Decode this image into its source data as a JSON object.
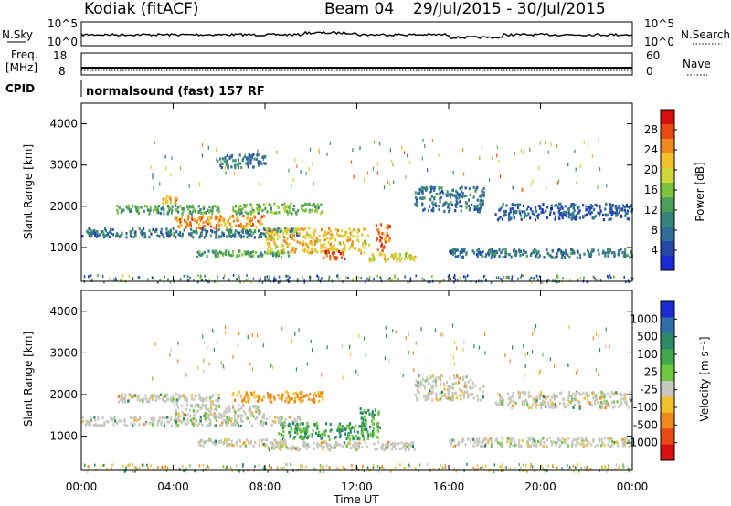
{
  "header": {
    "station": "Kodiak (fitACF)",
    "beam": "Beam 04",
    "dates": "29/Jul/2015 - 30/Jul/2015"
  },
  "noise_panel": {
    "left_label": "N.Sky",
    "right_label": "N.Search",
    "tick_top": "10^5",
    "tick_bottom": "10^0"
  },
  "freq_panel": {
    "left_label_1": "Freq.",
    "left_label_2": "[MHz]",
    "left_tick_top": "18",
    "left_tick_bottom": "8",
    "right_label": "Nave",
    "right_tick_top": "60",
    "right_tick_bottom": "0"
  },
  "cpid": {
    "label": "CPID",
    "value": "normalsound (fast) 157 RF"
  },
  "colors": {
    "power": [
      "#1a2bd6",
      "#2448a8",
      "#2f6e9a",
      "#35857a",
      "#4aa05a",
      "#7cc43c",
      "#cfd83a",
      "#f2c02a",
      "#f08a1e",
      "#ea4a14",
      "#d81010"
    ],
    "velocity": [
      "#1a2bd6",
      "#2f6ea8",
      "#2b8a66",
      "#3ea84a",
      "#6cc83c",
      "#c8c8c0",
      "#f2c02a",
      "#f08a1e",
      "#ea4a14",
      "#d81010"
    ],
    "ground_scatter": "#c8c8c0"
  },
  "chart_data": [
    {
      "type": "heatmap",
      "name": "power",
      "xlabel": "",
      "ylabel": "Slant Range [km]",
      "xlim": [
        "00:00",
        "24:00"
      ],
      "ylim": [
        180,
        4500
      ],
      "yticks": [
        "1000",
        "2000",
        "3000",
        "4000"
      ],
      "colorbar": {
        "label": "Power [dB]",
        "ticks": [
          "28",
          "24",
          "20",
          "16",
          "12",
          "8",
          "4"
        ],
        "range": [
          0,
          30
        ]
      },
      "bands": [
        {
          "t0": 0.0,
          "t1": 9.5,
          "r0": 1280,
          "r1": 1500,
          "val": 8
        },
        {
          "t0": 1.5,
          "t1": 6.0,
          "r0": 1850,
          "r1": 2050,
          "val": 12
        },
        {
          "t0": 3.5,
          "t1": 4.3,
          "r0": 2100,
          "r1": 2280,
          "val": 22
        },
        {
          "t0": 4.0,
          "t1": 8.0,
          "r0": 1500,
          "r1": 1800,
          "val": 22
        },
        {
          "t0": 6.5,
          "t1": 10.5,
          "r0": 1850,
          "r1": 2100,
          "val": 14
        },
        {
          "t0": 5.0,
          "t1": 9.0,
          "r0": 800,
          "r1": 950,
          "val": 12
        },
        {
          "t0": 8.0,
          "t1": 12.5,
          "r0": 900,
          "r1": 1500,
          "val": 20
        },
        {
          "t0": 10.5,
          "t1": 11.5,
          "r0": 750,
          "r1": 950,
          "val": 26
        },
        {
          "t0": 12.5,
          "t1": 14.5,
          "r0": 700,
          "r1": 900,
          "val": 18
        },
        {
          "t0": 12.8,
          "t1": 13.4,
          "r0": 950,
          "r1": 1600,
          "val": 24
        },
        {
          "t0": 14.5,
          "t1": 17.5,
          "r0": 1900,
          "r1": 2500,
          "val": 8
        },
        {
          "t0": 16.0,
          "t1": 24.0,
          "r0": 780,
          "r1": 1000,
          "val": 8
        },
        {
          "t0": 18.0,
          "t1": 24.0,
          "r0": 1700,
          "r1": 2100,
          "val": 6
        },
        {
          "t0": 6.0,
          "t1": 8.0,
          "r0": 2950,
          "r1": 3300,
          "val": 8
        }
      ]
    },
    {
      "type": "heatmap",
      "name": "velocity",
      "xlabel": "Time UT",
      "ylabel": "Slant Range [km]",
      "xlim": [
        "00:00",
        "24:00"
      ],
      "ylim": [
        180,
        4500
      ],
      "xticks": [
        "00:00",
        "04:00",
        "08:00",
        "12:00",
        "16:00",
        "20:00",
        "00:00"
      ],
      "yticks": [
        "1000",
        "2000",
        "3000",
        "4000"
      ],
      "colorbar": {
        "label": "Velocity [m s⁻¹]",
        "ticks": [
          "1000",
          "500",
          "100",
          "25",
          "-25",
          "-100",
          "-500",
          "-1000"
        ]
      },
      "bands": [
        {
          "t0": 0.0,
          "t1": 9.5,
          "r0": 1280,
          "r1": 1500,
          "val": 0
        },
        {
          "t0": 1.5,
          "t1": 6.0,
          "r0": 1850,
          "r1": 2050,
          "val": 0
        },
        {
          "t0": 4.0,
          "t1": 8.0,
          "r0": 1500,
          "r1": 1800,
          "val": 0
        },
        {
          "t0": 6.5,
          "t1": 10.5,
          "r0": 1850,
          "r1": 2100,
          "val": -100
        },
        {
          "t0": 8.5,
          "t1": 12.5,
          "r0": 950,
          "r1": 1350,
          "val": 100
        },
        {
          "t0": 12.0,
          "t1": 13.0,
          "r0": 1000,
          "r1": 1700,
          "val": 100
        },
        {
          "t0": 5.0,
          "t1": 9.0,
          "r0": 800,
          "r1": 950,
          "val": 0
        },
        {
          "t0": 8.0,
          "t1": 14.5,
          "r0": 700,
          "r1": 900,
          "val": 0
        },
        {
          "t0": 14.5,
          "t1": 17.5,
          "r0": 1900,
          "r1": 2500,
          "val": 0
        },
        {
          "t0": 16.0,
          "t1": 24.0,
          "r0": 780,
          "r1": 1000,
          "val": 0
        },
        {
          "t0": 18.0,
          "t1": 24.0,
          "r0": 1700,
          "r1": 2100,
          "val": 0
        }
      ]
    }
  ]
}
